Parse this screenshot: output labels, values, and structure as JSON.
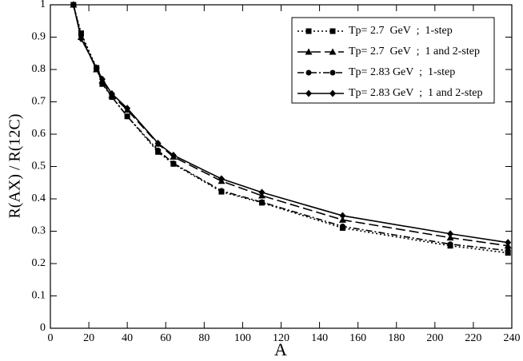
{
  "chart_data": {
    "type": "line",
    "x_label": "A",
    "y_label": "R(AX) / R(12C)",
    "x": [
      12,
      16,
      24,
      27,
      32,
      40,
      56,
      64,
      89,
      110,
      152,
      208,
      238
    ],
    "series": [
      {
        "name": "Tp= 2.7  GeV  ;  1-step",
        "color": "#000000",
        "marker": "square",
        "dash": "2,3",
        "values": [
          1,
          0.912,
          0.805,
          0.755,
          0.715,
          0.655,
          0.545,
          0.508,
          0.422,
          0.388,
          0.31,
          0.255,
          0.233
        ]
      },
      {
        "name": "Tp= 2.7  GeV  ;  1 and 2-step",
        "color": "#000000",
        "marker": "triangle",
        "dash": "12,5",
        "values": [
          1,
          0.9,
          0.8,
          0.765,
          0.72,
          0.675,
          0.57,
          0.53,
          0.455,
          0.41,
          0.335,
          0.28,
          0.255
        ]
      },
      {
        "name": "Tp= 2.83 GeV  ;  1-step",
        "color": "#000000",
        "marker": "circle",
        "dash": "8,3,2,3",
        "values": [
          1,
          0.905,
          0.8,
          0.76,
          0.715,
          0.655,
          0.55,
          0.51,
          0.425,
          0.39,
          0.315,
          0.26,
          0.24
        ]
      },
      {
        "name": "Tp= 2.83 GeV  ;  1 and 2-step",
        "color": "#000000",
        "marker": "diamond",
        "dash": "none",
        "values": [
          1,
          0.895,
          0.805,
          0.77,
          0.725,
          0.68,
          0.572,
          0.535,
          0.462,
          0.42,
          0.348,
          0.292,
          0.265
        ]
      }
    ],
    "xlim": [
      0,
      240
    ],
    "xticks": [
      0,
      20,
      40,
      60,
      80,
      100,
      120,
      140,
      160,
      180,
      200,
      220,
      240
    ],
    "ylim": [
      0,
      1
    ],
    "yticks": [
      0,
      0.1,
      0.2,
      0.3,
      0.4,
      0.5,
      0.6,
      0.7,
      0.8,
      0.9,
      1
    ],
    "legend": "upper right",
    "grid": false
  }
}
